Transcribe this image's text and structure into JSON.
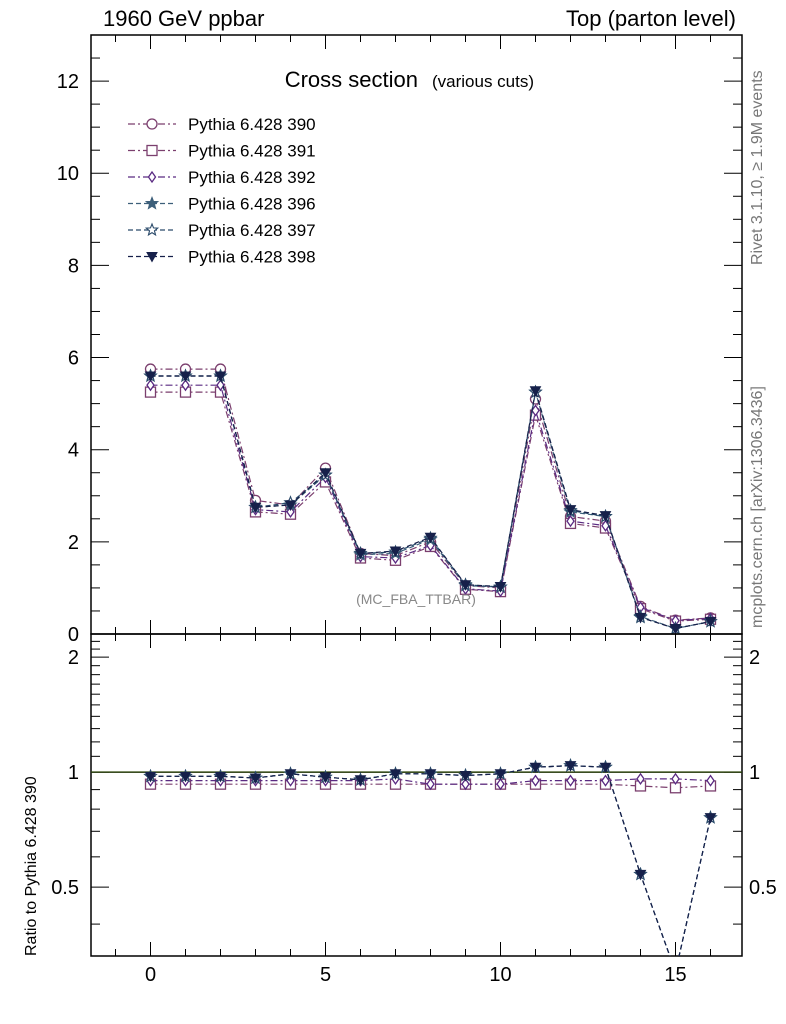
{
  "header": {
    "left": "1960 GeV ppbar",
    "right": "Top (parton level)"
  },
  "side_text": {
    "rivet": "Rivet 3.1.10, ≥ 1.9M events",
    "mcplots": "mcplots.cern.ch [arXiv:1306.3436]"
  },
  "watermark": "(MC_FBA_TTBAR)",
  "chart_data": [
    {
      "type": "line",
      "title": "Cross section",
      "subtitle": "(various cuts)",
      "xlabel": "",
      "ylabel": "",
      "xlim": [
        -1.7,
        16.9
      ],
      "ylim": [
        0,
        13
      ],
      "xticks": [
        0,
        5,
        10,
        15
      ],
      "yticks": [
        0,
        2,
        4,
        6,
        8,
        10,
        12
      ],
      "legend_position": "top-left",
      "grid": false,
      "x": [
        0,
        1,
        2,
        3,
        4,
        5,
        6,
        7,
        8,
        9,
        10,
        11,
        12,
        13,
        14,
        15,
        16
      ],
      "series": [
        {
          "name": "Pythia 6.428 390",
          "color": "#7b3f6e",
          "marker": "circle",
          "dash": "dashdot",
          "values": [
            5.75,
            5.75,
            5.75,
            2.9,
            2.8,
            3.6,
            1.75,
            1.7,
            2.0,
            1.05,
            1.0,
            5.1,
            2.55,
            2.45,
            0.6,
            0.3,
            0.35
          ]
        },
        {
          "name": "Pythia 6.428 391",
          "color": "#7b3f6e",
          "marker": "square",
          "dash": "dashdot",
          "values": [
            5.25,
            5.25,
            5.25,
            2.65,
            2.6,
            3.3,
            1.65,
            1.6,
            1.9,
            0.97,
            0.92,
            4.75,
            2.4,
            2.3,
            0.55,
            0.28,
            0.32
          ]
        },
        {
          "name": "Pythia 6.428 392",
          "color": "#5a2a82",
          "marker": "diamond",
          "dash": "dashdot",
          "values": [
            5.4,
            5.4,
            5.4,
            2.7,
            2.65,
            3.4,
            1.68,
            1.65,
            1.92,
            0.98,
            0.93,
            4.85,
            2.45,
            2.35,
            0.58,
            0.29,
            0.34
          ]
        },
        {
          "name": "Pythia 6.428 396",
          "color": "#3d5f7a",
          "marker": "star",
          "dash": "dashed",
          "values": [
            5.6,
            5.6,
            5.6,
            2.75,
            2.8,
            3.45,
            1.72,
            1.75,
            2.05,
            1.05,
            1.02,
            5.25,
            2.65,
            2.55,
            0.38,
            0.12,
            0.27
          ]
        },
        {
          "name": "Pythia 6.428 397",
          "color": "#2a4a6a",
          "marker": "star-open",
          "dash": "dashed",
          "values": [
            5.6,
            5.6,
            5.6,
            2.75,
            2.85,
            3.45,
            1.75,
            1.78,
            2.08,
            1.07,
            1.02,
            5.25,
            2.68,
            2.55,
            0.36,
            0.12,
            0.27
          ]
        },
        {
          "name": "Pythia 6.428 398",
          "color": "#16204a",
          "marker": "triangle-down",
          "dash": "dashed",
          "values": [
            5.6,
            5.6,
            5.6,
            2.75,
            2.8,
            3.5,
            1.75,
            1.8,
            2.1,
            1.07,
            1.03,
            5.28,
            2.7,
            2.57,
            0.36,
            0.12,
            0.27
          ]
        }
      ]
    },
    {
      "type": "line",
      "title": "",
      "xlabel": "",
      "ylabel": "Ratio to Pythia 6.428 390",
      "xlim": [
        -1.7,
        16.9
      ],
      "ylim": [
        0.33,
        2.3
      ],
      "xticks": [
        0,
        5,
        10,
        15
      ],
      "yticks": [
        0.5,
        1,
        2
      ],
      "ytick_labels": [
        "0.5",
        "1",
        "2"
      ],
      "log_scale_y": true,
      "reference_line": 1,
      "reference_line_color": "#7ab827",
      "x": [
        0,
        1,
        2,
        3,
        4,
        5,
        6,
        7,
        8,
        9,
        10,
        11,
        12,
        13,
        14,
        15,
        16
      ],
      "series": [
        {
          "name": "Pythia 6.428 391",
          "color": "#7b3f6e",
          "marker": "square",
          "dash": "dashdot",
          "values": [
            0.93,
            0.93,
            0.93,
            0.93,
            0.93,
            0.93,
            0.93,
            0.93,
            0.93,
            0.93,
            0.93,
            0.93,
            0.93,
            0.93,
            0.92,
            0.91,
            0.92
          ]
        },
        {
          "name": "Pythia 6.428 392",
          "color": "#5a2a82",
          "marker": "diamond",
          "dash": "dashdot",
          "values": [
            0.95,
            0.95,
            0.95,
            0.95,
            0.95,
            0.95,
            0.95,
            0.96,
            0.93,
            0.93,
            0.93,
            0.95,
            0.95,
            0.95,
            0.96,
            0.96,
            0.95
          ]
        },
        {
          "name": "Pythia 6.428 396",
          "color": "#3d5f7a",
          "marker": "star",
          "dash": "dashed",
          "values": [
            0.975,
            0.975,
            0.975,
            0.965,
            0.99,
            0.97,
            0.955,
            0.99,
            0.99,
            0.98,
            0.99,
            1.03,
            1.04,
            1.03,
            0.54,
            0.3,
            0.76
          ]
        },
        {
          "name": "Pythia 6.428 397",
          "color": "#2a4a6a",
          "marker": "star-open",
          "dash": "dashed",
          "values": [
            0.975,
            0.975,
            0.975,
            0.965,
            0.99,
            0.97,
            0.955,
            0.99,
            0.99,
            0.98,
            0.99,
            1.03,
            1.04,
            1.03,
            0.54,
            0.3,
            0.76
          ]
        },
        {
          "name": "Pythia 6.428 398",
          "color": "#16204a",
          "marker": "triangle-down",
          "dash": "dashed",
          "values": [
            0.975,
            0.975,
            0.975,
            0.965,
            0.99,
            0.97,
            0.955,
            0.99,
            0.99,
            0.98,
            0.99,
            1.03,
            1.04,
            1.03,
            0.54,
            0.3,
            0.76
          ]
        }
      ]
    }
  ]
}
